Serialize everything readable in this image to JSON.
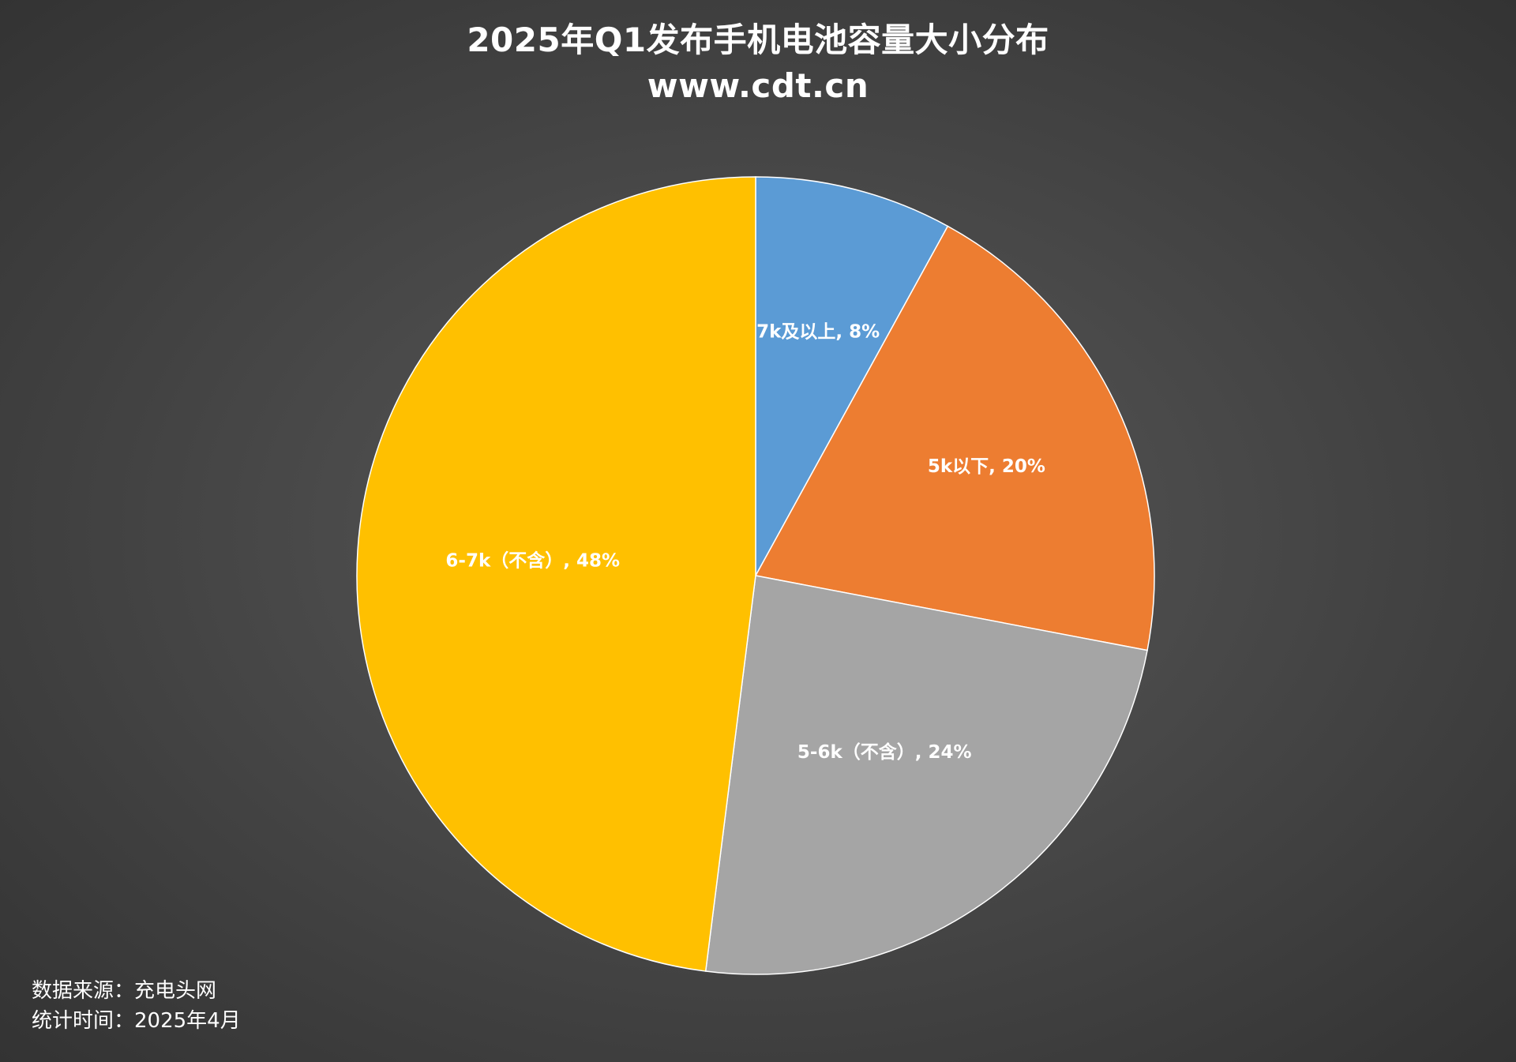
{
  "chart_data": {
    "type": "pie",
    "title": "2025年Q1发布手机电池容量大小分布",
    "subtitle": "www.cdt.cn",
    "slices": [
      {
        "label": "7k及以上",
        "value": 8,
        "data_label": "7k及以上, 8%",
        "color": "#5b9bd5"
      },
      {
        "label": "5k以下",
        "value": 20,
        "data_label": "5k以下, 20%",
        "color": "#ed7d31"
      },
      {
        "label": "5-6k（不含）",
        "value": 24,
        "data_label": "5-6k（不含）, 24%",
        "color": "#a5a5a5"
      },
      {
        "label": "6-7k（不含）",
        "value": 48,
        "data_label": "6-7k（不含）, 48%",
        "color": "#ffc000"
      }
    ],
    "start_angle": "12 o'clock",
    "direction": "clockwise",
    "legend": "none"
  },
  "footer": {
    "source": "数据来源：充电头网",
    "time": "统计时间：2025年4月"
  },
  "colors": {
    "background": "#4a4a4a",
    "text": "#ffffff",
    "slice_border": "#ffffff"
  }
}
